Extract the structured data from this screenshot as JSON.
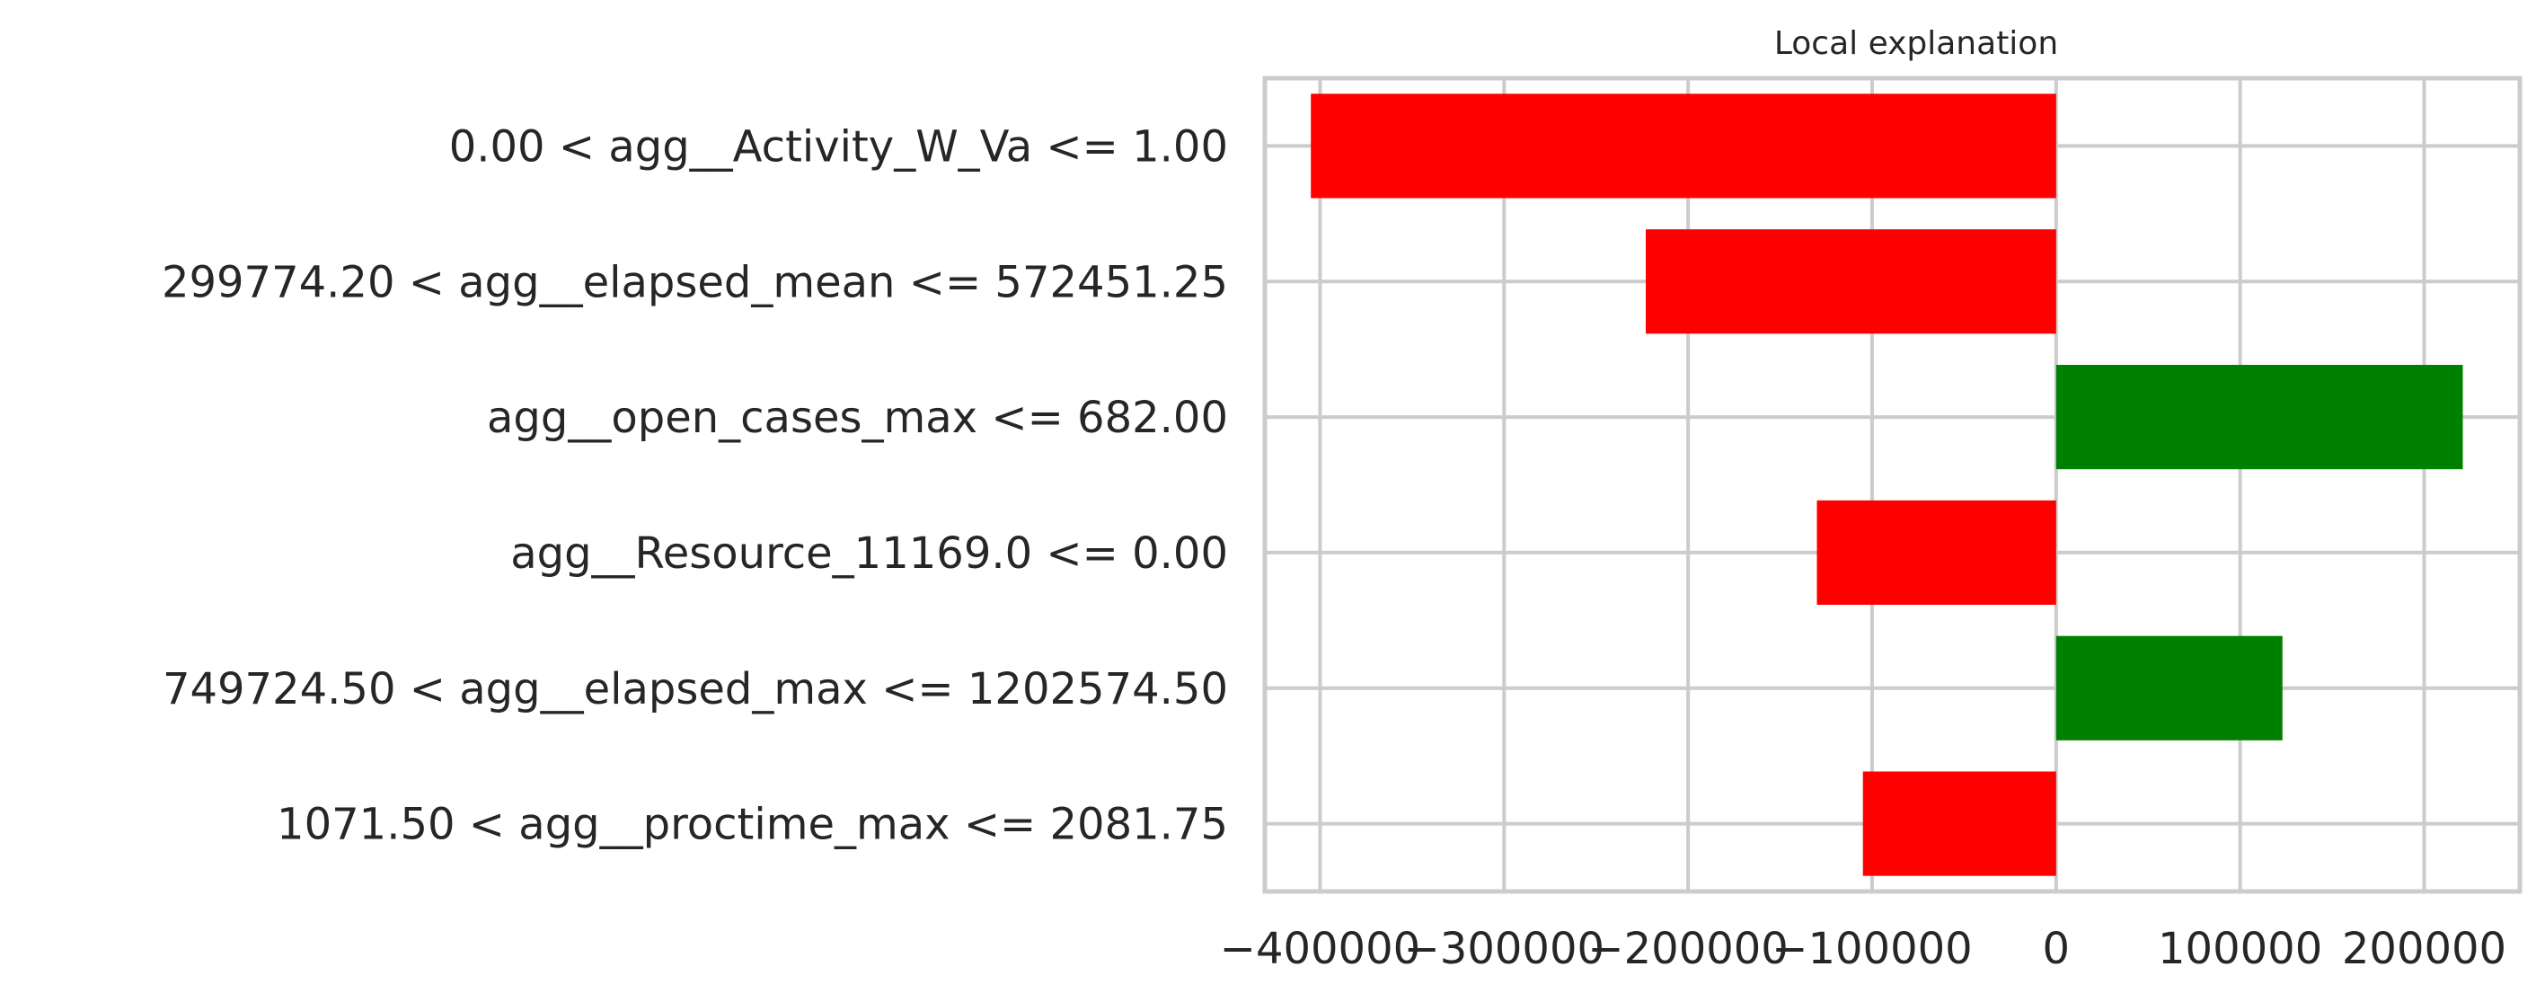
{
  "chart_data": {
    "type": "bar",
    "orientation": "horizontal",
    "title": "Local explanation",
    "xlabel": "",
    "ylabel": "",
    "xlim": [
      -430000,
      252000
    ],
    "xticks": [
      -400000,
      -300000,
      -200000,
      -100000,
      0,
      100000,
      200000
    ],
    "xtick_labels": [
      "−400000",
      "−300000",
      "−200000",
      "−100000",
      "0",
      "100000",
      "200000"
    ],
    "grid": true,
    "categories": [
      "0.00 < agg__Activity_W_Va <= 1.00",
      "299774.20 < agg__elapsed_mean <= 572451.25",
      "agg__open_cases_max <= 682.00",
      "agg__Resource_11169.0 <= 0.00",
      "749724.50 < agg__elapsed_max <= 1202574.50",
      "1071.50 < agg__proctime_max <= 2081.75"
    ],
    "values": [
      -405000,
      -223000,
      221000,
      -130000,
      123000,
      -105000
    ],
    "colors": {
      "positive": "#008000",
      "negative": "#ff0000"
    }
  }
}
